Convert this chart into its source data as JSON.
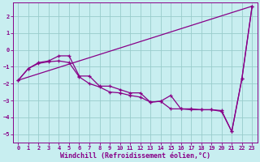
{
  "xlabel": "Windchill (Refroidissement éolien,°C)",
  "bg_color": "#c8eef0",
  "line_color": "#880088",
  "grid_color": "#99cccc",
  "xlim": [
    -0.5,
    23.5
  ],
  "ylim": [
    -5.5,
    2.8
  ],
  "xticks": [
    0,
    1,
    2,
    3,
    4,
    5,
    6,
    7,
    8,
    9,
    10,
    11,
    12,
    13,
    14,
    15,
    16,
    17,
    18,
    19,
    20,
    21,
    22,
    23
  ],
  "yticks": [
    -5,
    -4,
    -3,
    -2,
    -1,
    0,
    1,
    2
  ],
  "series1_x": [
    0,
    1,
    2,
    3,
    4,
    5,
    6,
    7,
    8,
    9,
    10,
    11,
    12,
    13,
    14,
    15,
    16,
    17,
    18,
    19,
    20,
    21,
    22,
    23
  ],
  "series1_y": [
    -1.8,
    -1.1,
    -0.75,
    -0.65,
    -0.35,
    -0.35,
    -1.55,
    -1.55,
    -2.15,
    -2.15,
    -2.35,
    -2.55,
    -2.55,
    -3.1,
    -3.05,
    -2.7,
    -3.5,
    -3.5,
    -3.55,
    -3.55,
    -3.6,
    -4.85,
    -1.7,
    2.6
  ],
  "series2_x": [
    0,
    1,
    2,
    3,
    4,
    5,
    6,
    7,
    8,
    9,
    10,
    11,
    12,
    13,
    14,
    15,
    16,
    17,
    18,
    19,
    20,
    21,
    22,
    23
  ],
  "series2_y": [
    -1.8,
    -1.1,
    -0.8,
    -0.7,
    -0.65,
    -0.75,
    -1.6,
    -2.0,
    -2.2,
    -2.5,
    -2.55,
    -2.7,
    -2.8,
    -3.1,
    -3.05,
    -3.5,
    -3.5,
    -3.55,
    -3.55,
    -3.55,
    -3.65,
    -4.85,
    -1.7,
    2.6
  ],
  "series3_x": [
    0,
    23
  ],
  "series3_y": [
    -1.8,
    2.6
  ]
}
